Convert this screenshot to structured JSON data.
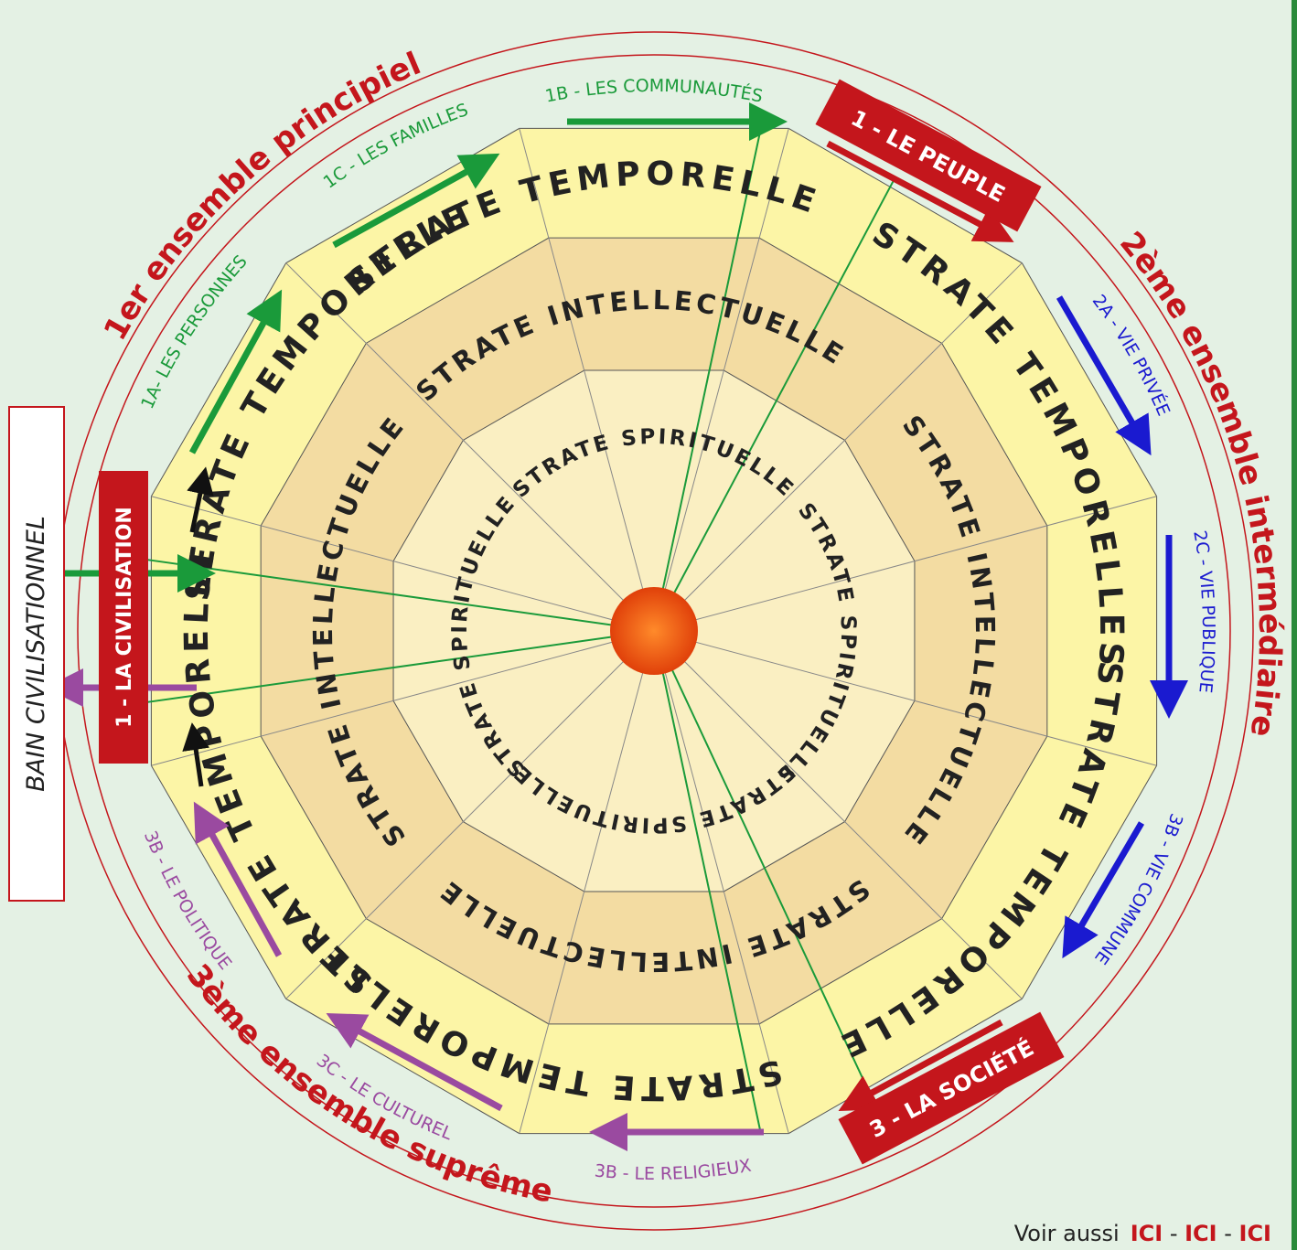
{
  "ensembles": [
    "1er ensemble principiel",
    "2ème ensemble intermédiaire",
    "3ème ensemble suprême"
  ],
  "side_box": "BAIN CIVILISATIONNEL",
  "badges": [
    "1 - LA CIVILISATION",
    "1 - LE PEUPLE",
    "3 - LA SOCIÉTÉ"
  ],
  "arrow_labels": [
    "1A- LES PERSONNES",
    "1C - LES FAMILLES",
    "1B - LES COMMUNAUTÉS",
    "2A - VIE PRIVÉE",
    "2C - VIE PUBLIQUE",
    "3B - VIE COMMUNE",
    "3B - LE RELIGIEUX",
    "3C - LE CULTUREL",
    "3B - LE POLITIQUE"
  ],
  "strata": {
    "temporal": [
      "STRATE TEMPORELLE",
      "STRATE TEMPORELLES",
      "STRATE TEMPORELLE",
      "STRATE TEMPORELLE",
      "STRATE TEMPORELLE",
      "STRATE TEMPORELLE"
    ],
    "intellectual": [
      "STRATE INTELLECTUELLE",
      "STRATE INTELLECTUELLE",
      "STRATE INTELLECTUELLE",
      "STRATE INTELLECTUELLE"
    ],
    "spiritual": [
      "STRATE SPIRITUELLE",
      "STRATE SPIRITUELLE",
      "STRATE SPIRITUELLE",
      "STRATE SPIRITUELLE"
    ]
  },
  "footer": {
    "prefix": "Voir aussi",
    "links": [
      "ICI",
      "ICI",
      "ICI"
    ]
  }
}
